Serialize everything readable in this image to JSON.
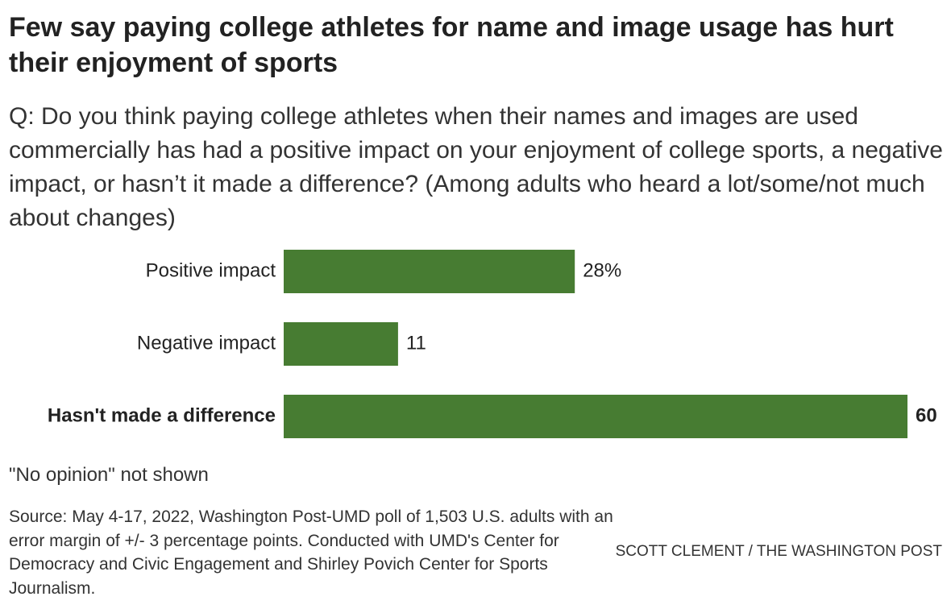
{
  "chart_data": {
    "type": "bar",
    "orientation": "horizontal",
    "title": "Few say paying college athletes for name and image usage has hurt their enjoyment of sports",
    "subtitle": "Q: Do you think paying college athletes when their names and images are used commercially has had a positive impact on your enjoyment of college sports, a negative impact, or hasn’t it made a difference? (Among adults who heard a lot/some/not much about changes)",
    "categories": [
      "Positive impact",
      "Negative impact",
      "Hasn't made a difference"
    ],
    "values": [
      28,
      11,
      60
    ],
    "value_labels": [
      "28%",
      "11",
      "60"
    ],
    "color": "#477c32",
    "note": "\"No opinion\" not shown",
    "source": "Source: May 4-17, 2022, Washington Post-UMD poll of 1,503 U.S. adults with an error margin of +/- 3 percentage points. Conducted with UMD's Center for Democracy and Civic Engagement and Shirley Povich Center for Sports Journalism.",
    "credit": "SCOTT CLEMENT / THE WASHINGTON POST"
  }
}
